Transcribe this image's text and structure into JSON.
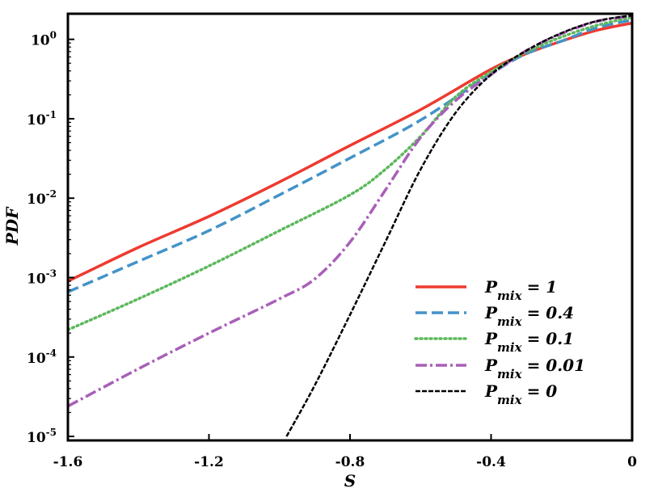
{
  "chart_data": {
    "type": "line",
    "title": "",
    "xlabel": "S",
    "ylabel": "PDF",
    "xlim": [
      -1.6,
      0
    ],
    "ylim": [
      8.9e-06,
      2.1
    ],
    "yscale": "log",
    "grid": false,
    "legend_placement": "bottom-right",
    "xticks": [
      -1.6,
      -1.2,
      -0.8,
      -0.4,
      0
    ],
    "xtick_labels": [
      "-1.6",
      "-1.2",
      "-0.8",
      "-0.4",
      "0"
    ],
    "yticks": [
      1,
      0.1,
      0.01,
      0.001,
      0.0001,
      1e-05
    ],
    "ytick_labels": [
      {
        "base": "10",
        "exp": "0"
      },
      {
        "base": "10",
        "exp": "-1"
      },
      {
        "base": "10",
        "exp": "-2"
      },
      {
        "base": "10",
        "exp": "-3"
      },
      {
        "base": "10",
        "exp": "-4"
      },
      {
        "base": "10",
        "exp": "-5"
      }
    ],
    "series": [
      {
        "name": "P_mix = 1",
        "label_main": "P",
        "label_sub": "mix",
        "label_value": "= 1",
        "color": "#ee3a2f",
        "dash": "solid",
        "x": [
          -1.6,
          -1.4,
          -1.2,
          -1.0,
          -0.8,
          -0.6,
          -0.4,
          -0.3,
          -0.2,
          -0.1,
          0
        ],
        "y": [
          0.0009,
          0.0024,
          0.0059,
          0.016,
          0.046,
          0.13,
          0.42,
          0.66,
          0.95,
          1.3,
          1.6
        ]
      },
      {
        "name": "P_mix = 0.4",
        "label_main": "P",
        "label_sub": "mix",
        "label_value": "= 0.4",
        "color": "#4393c8",
        "dash": "dashed",
        "x": [
          -1.6,
          -1.4,
          -1.2,
          -1.0,
          -0.8,
          -0.6,
          -0.4,
          -0.3,
          -0.2,
          -0.1,
          0
        ],
        "y": [
          0.00066,
          0.0016,
          0.0039,
          0.011,
          0.032,
          0.096,
          0.37,
          0.66,
          0.95,
          1.4,
          1.75
        ]
      },
      {
        "name": "P_mix = 0.1",
        "label_main": "P",
        "label_sub": "mix",
        "label_value": "= 0.1",
        "color": "#5cb85c",
        "dash": "dotted",
        "x": [
          -1.6,
          -1.4,
          -1.2,
          -1.0,
          -0.8,
          -0.7,
          -0.6,
          -0.5,
          -0.4,
          -0.3,
          -0.2,
          -0.1,
          0
        ],
        "y": [
          0.00022,
          0.00054,
          0.0014,
          0.0039,
          0.011,
          0.023,
          0.06,
          0.19,
          0.39,
          0.69,
          1.07,
          1.5,
          1.9
        ]
      },
      {
        "name": "P_mix = 0.01",
        "label_main": "P",
        "label_sub": "mix",
        "label_value": "= 0.01",
        "color": "#a95fb8",
        "dash": "dashdot",
        "x": [
          -1.6,
          -1.4,
          -1.2,
          -1.0,
          -0.9,
          -0.8,
          -0.7,
          -0.6,
          -0.5,
          -0.4,
          -0.3,
          -0.2,
          -0.1,
          0
        ],
        "y": [
          2.4e-05,
          7.1e-05,
          0.0002,
          0.00054,
          0.00096,
          0.0028,
          0.0126,
          0.058,
          0.17,
          0.36,
          0.72,
          1.18,
          1.68,
          1.98
        ]
      },
      {
        "name": "P_mix = 0",
        "label_main": "P",
        "label_sub": "mix",
        "label_value": "= 0",
        "color": "#000000",
        "dash": "densedash",
        "x": [
          -0.98,
          -0.9,
          -0.8,
          -0.7,
          -0.6,
          -0.5,
          -0.4,
          -0.3,
          -0.2,
          -0.1,
          0
        ],
        "y": [
          1e-05,
          4.4e-05,
          0.00034,
          0.0028,
          0.023,
          0.12,
          0.36,
          0.72,
          1.2,
          1.7,
          2.0
        ]
      }
    ]
  }
}
